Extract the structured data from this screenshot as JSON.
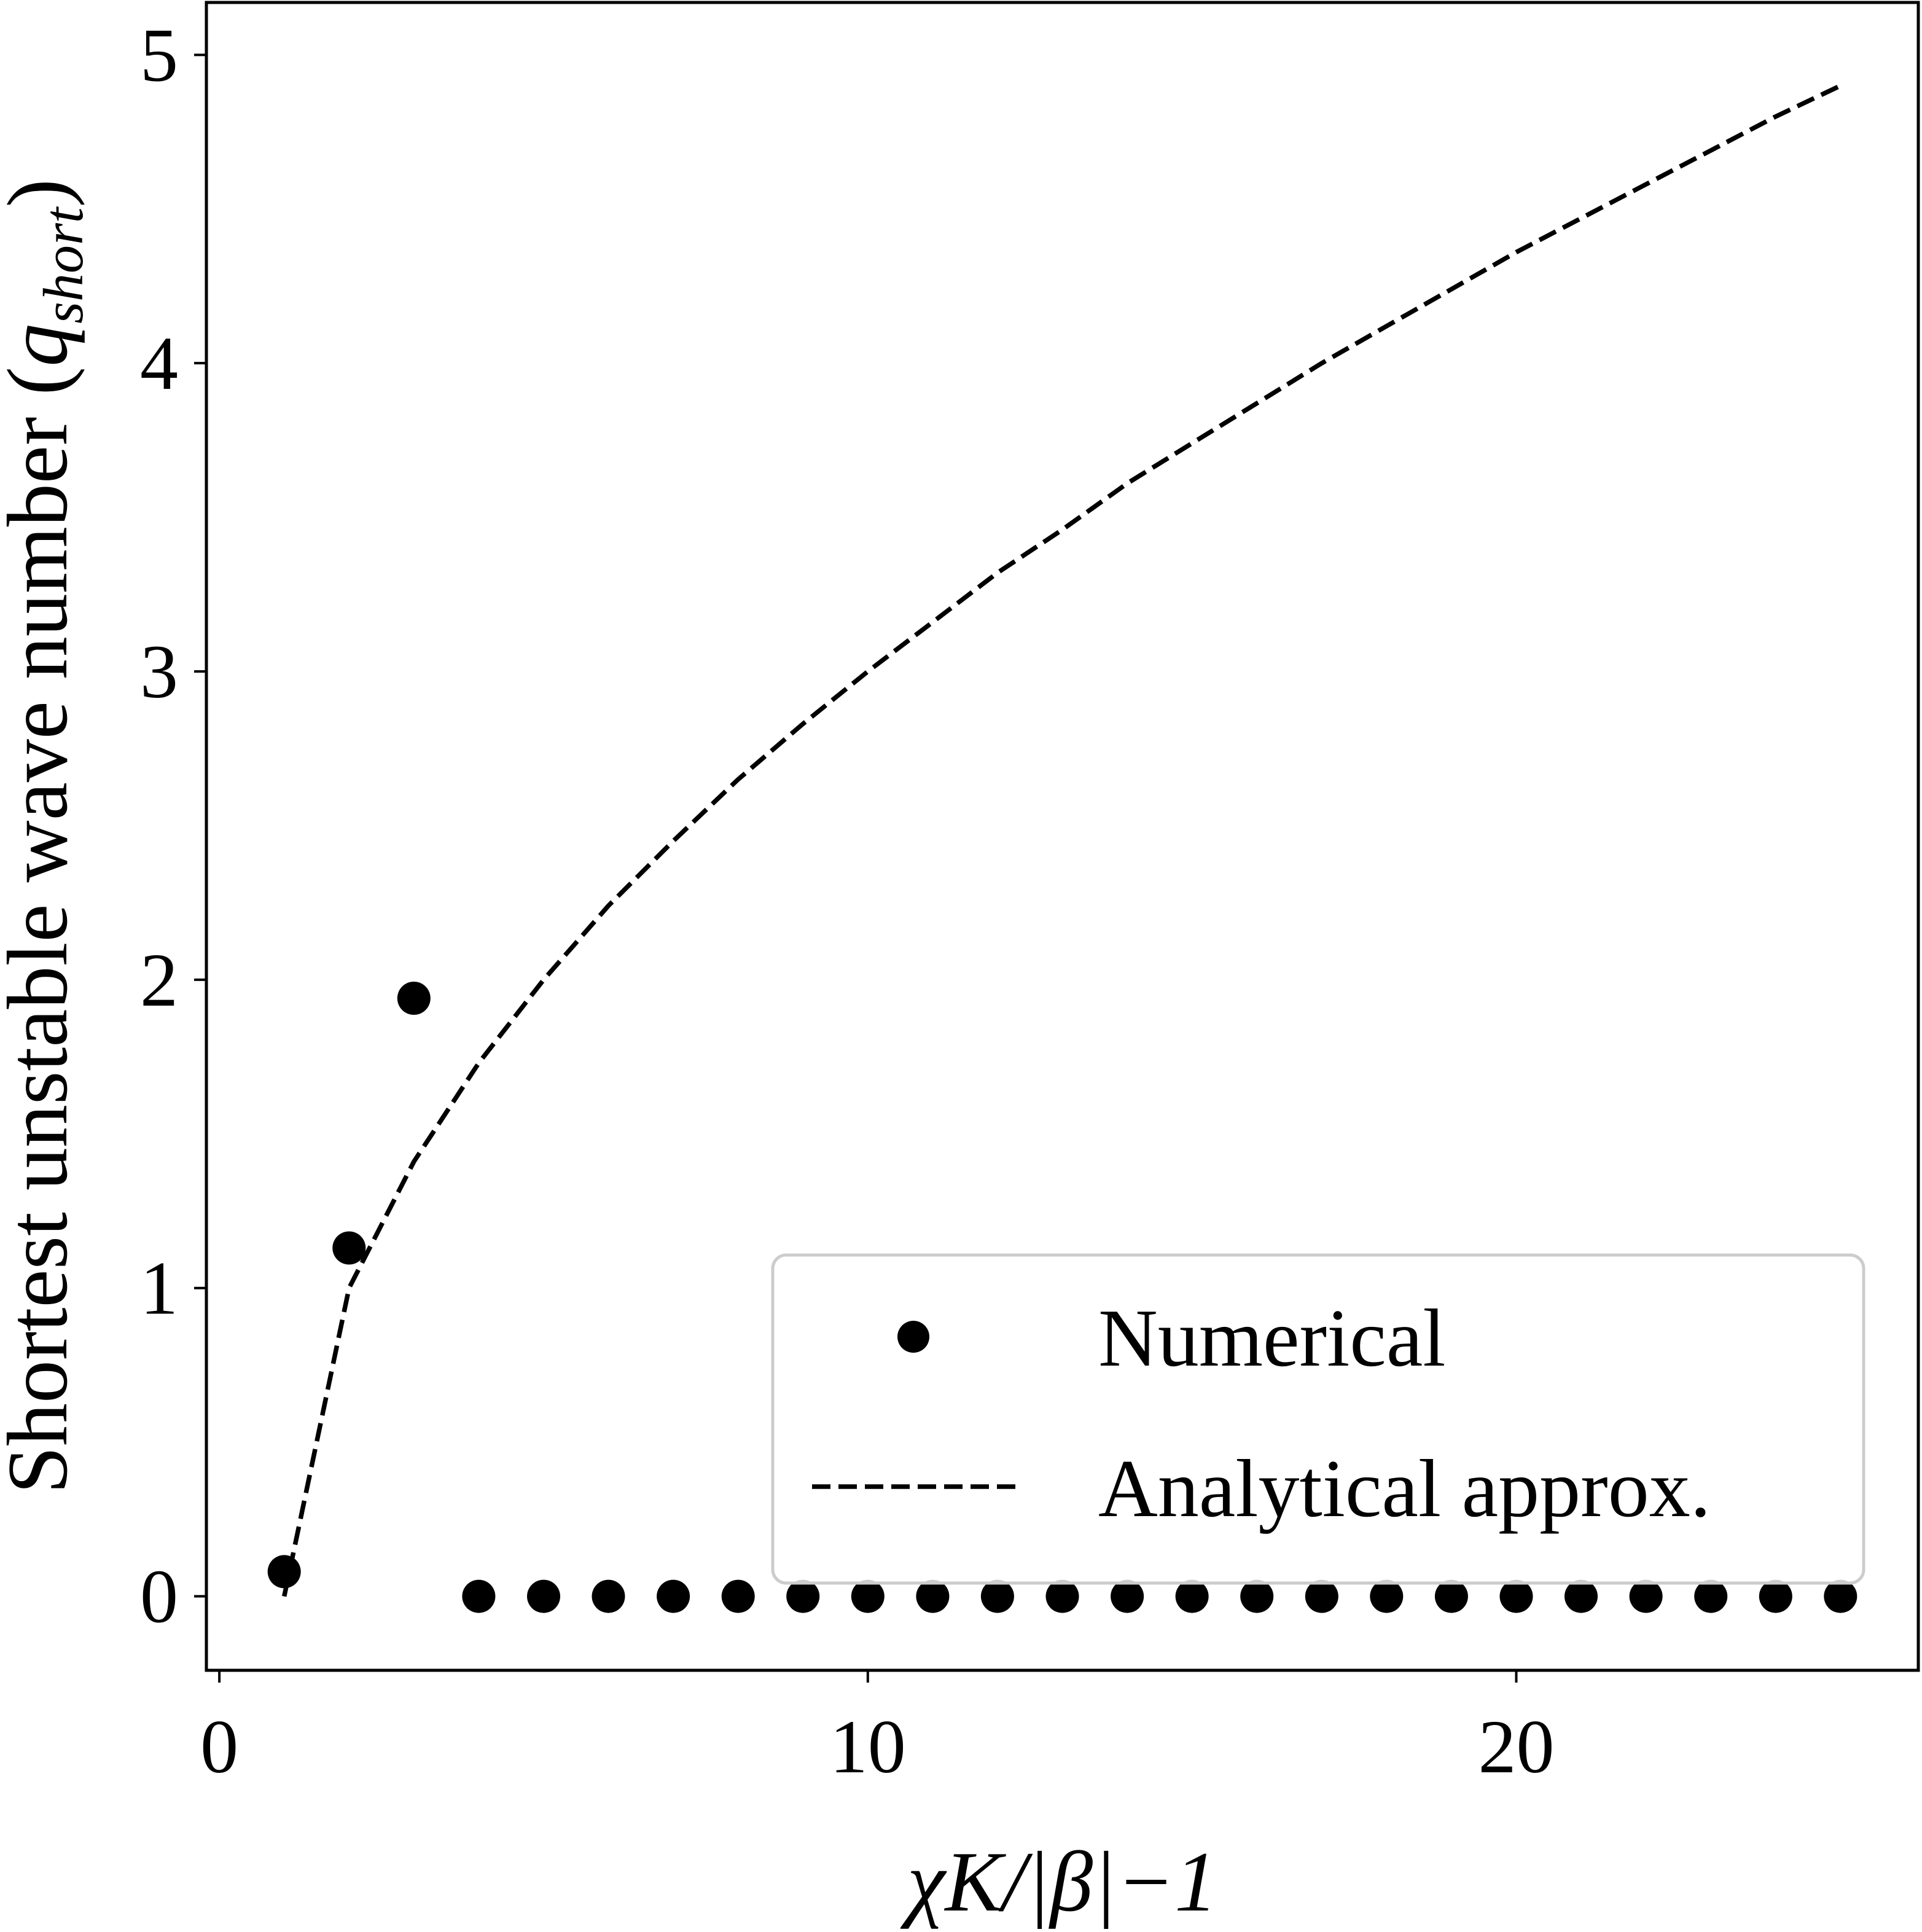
{
  "chart_data": {
    "type": "scatter",
    "title": "",
    "xlabel": "χK/|β|−1",
    "ylabel": "Shortest unstable wave number (q_short)",
    "ylabel_main": "Shortest unstable wave number (",
    "ylabel_symbol": "q",
    "ylabel_subscript": "short",
    "ylabel_close": ")",
    "xlim": [
      -0.2,
      26.2
    ],
    "ylim": [
      -0.24,
      5.17
    ],
    "xticks": [
      0,
      10,
      20
    ],
    "xtick_labels": [
      "0",
      "10",
      "20"
    ],
    "yticks": [
      0,
      1,
      2,
      3,
      4,
      5
    ],
    "ytick_labels": [
      "0",
      "1",
      "2",
      "3",
      "4",
      "5"
    ],
    "grid": false,
    "legend": {
      "placement": "lower-right",
      "frame": true
    },
    "series": [
      {
        "name": "Numerical",
        "kind": "markers",
        "color": "#000000",
        "x": [
          1,
          2,
          3,
          4,
          5,
          6,
          7,
          8,
          9,
          10,
          11,
          12,
          13,
          14,
          15,
          16,
          17,
          18,
          19,
          20,
          21,
          22,
          23,
          24,
          25
        ],
        "y": [
          0.08,
          1.13,
          1.94,
          0,
          0,
          0,
          0,
          0,
          0,
          0,
          0,
          0,
          0,
          0,
          0,
          0,
          0,
          0,
          0,
          0,
          0,
          0,
          0,
          0,
          0
        ]
      },
      {
        "name": "Analytical approx.",
        "kind": "dashed-line",
        "color": "#000000",
        "x": [
          1,
          2,
          3,
          4,
          5,
          6,
          7,
          8,
          9,
          10,
          11,
          12,
          13,
          14,
          15,
          16,
          17,
          18,
          19,
          20,
          21,
          22,
          23,
          24,
          25
        ],
        "y": [
          0,
          1.0,
          1.41,
          1.73,
          2.0,
          2.24,
          2.45,
          2.65,
          2.83,
          3.0,
          3.16,
          3.32,
          3.46,
          3.61,
          3.74,
          3.87,
          4.0,
          4.12,
          4.24,
          4.36,
          4.47,
          4.58,
          4.69,
          4.8,
          4.9
        ]
      }
    ]
  }
}
